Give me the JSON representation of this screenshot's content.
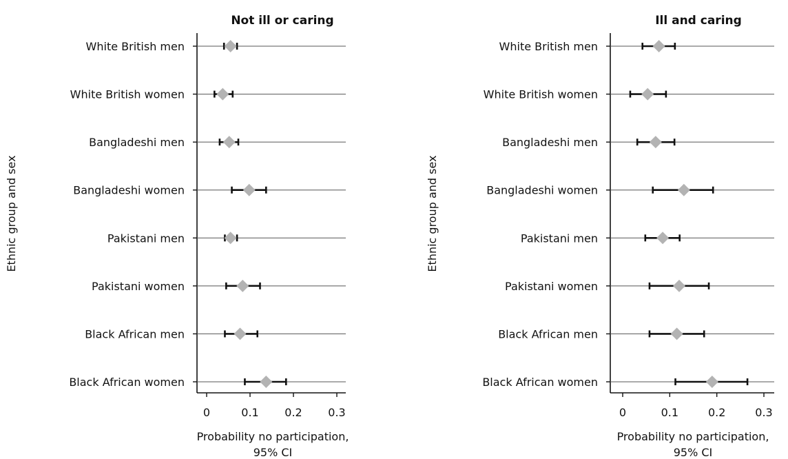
{
  "colors": {
    "marker": "#b3b3b3",
    "ci_line": "#111111",
    "grid_line": "#555555",
    "axis": "#111111"
  },
  "chart_data": [
    {
      "type": "scatter",
      "title": "Not ill or caring",
      "ylabel": "Ethnic group and sex",
      "xlabel": [
        "Probability no participation,",
        "95% CI"
      ],
      "xlim": [
        -0.02,
        0.32
      ],
      "xticks": [
        0,
        0.1,
        0.2,
        0.3
      ],
      "xtick_labels": [
        "0",
        "0.1",
        "0.2",
        "0.3"
      ],
      "grid": "horizontal",
      "categories": [
        "White British men",
        "White British women",
        "Bangladeshi men",
        "Bangladeshi women",
        "Pakistani men",
        "Pakistani women",
        "Black African men",
        "Black African women"
      ],
      "estimates": [
        0.055,
        0.037,
        0.052,
        0.098,
        0.055,
        0.083,
        0.077,
        0.137
      ],
      "ci_lower": [
        0.04,
        0.018,
        0.03,
        0.058,
        0.042,
        0.045,
        0.042,
        0.088
      ],
      "ci_upper": [
        0.07,
        0.06,
        0.073,
        0.137,
        0.07,
        0.123,
        0.117,
        0.183
      ]
    },
    {
      "type": "scatter",
      "title": "Ill and caring",
      "ylabel": "Ethnic group and sex",
      "xlabel": [
        "Probability no participation,",
        "95% CI"
      ],
      "xlim": [
        -0.02,
        0.32
      ],
      "xticks": [
        0,
        0.1,
        0.2,
        0.3
      ],
      "xtick_labels": [
        "0",
        "0.1",
        "0.2",
        "0.3"
      ],
      "grid": "horizontal",
      "categories": [
        "White British men",
        "White British women",
        "Bangladeshi men",
        "Bangladeshi women",
        "Pakistani men",
        "Pakistani women",
        "Black African men",
        "Black African women"
      ],
      "estimates": [
        0.077,
        0.053,
        0.07,
        0.13,
        0.085,
        0.12,
        0.115,
        0.19
      ],
      "ci_lower": [
        0.042,
        0.016,
        0.031,
        0.064,
        0.048,
        0.057,
        0.057,
        0.112
      ],
      "ci_upper": [
        0.111,
        0.092,
        0.11,
        0.192,
        0.121,
        0.183,
        0.173,
        0.265
      ]
    }
  ]
}
